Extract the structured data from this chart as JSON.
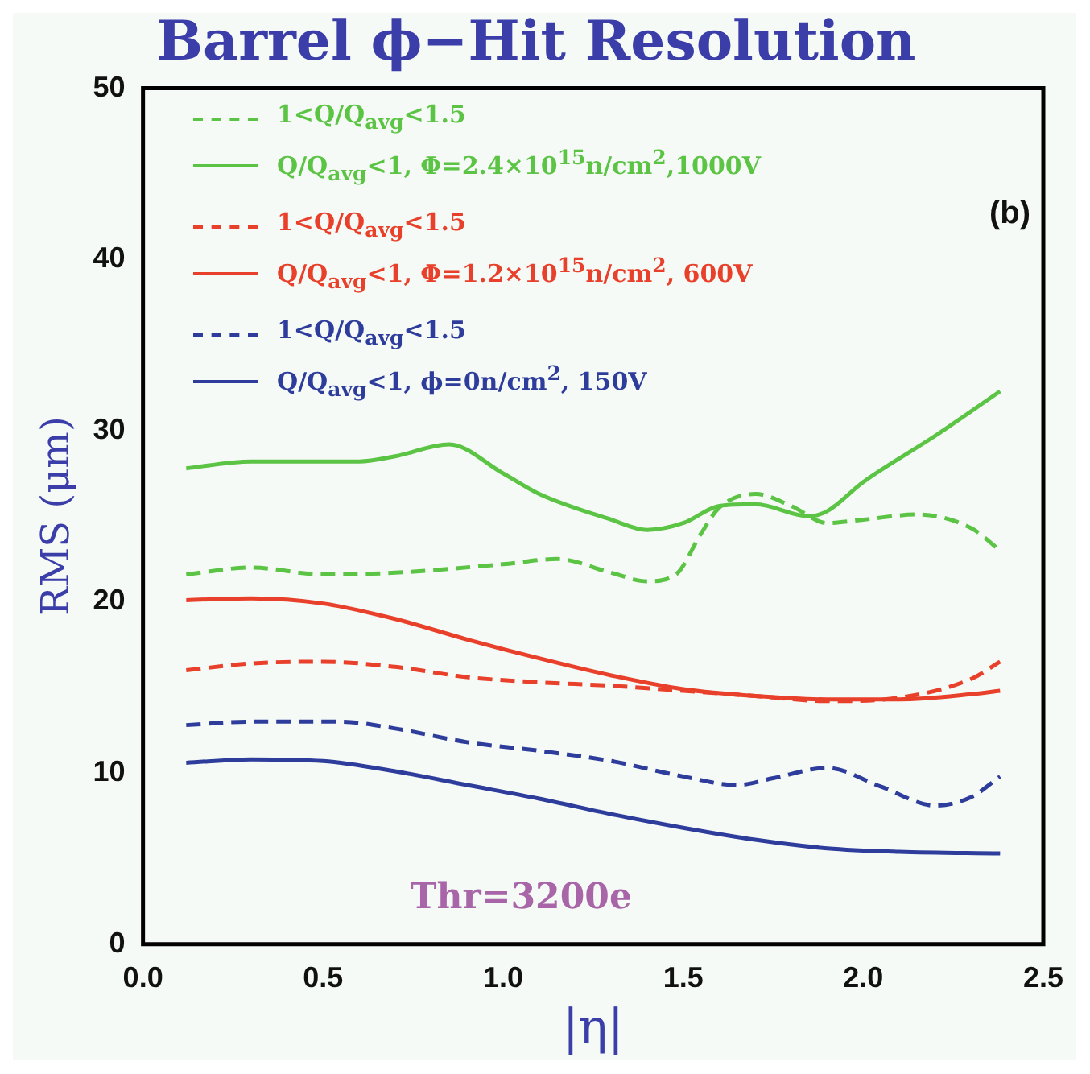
{
  "chart_data": {
    "type": "line",
    "title": "Barrel ϕ−Hit Resolution",
    "xlabel": "|η|",
    "ylabel": "RMS (μm)",
    "annotations": [
      "(b)",
      "Thr=3200e"
    ],
    "xlim": [
      0,
      2.5
    ],
    "xticks": [
      {
        "value": 0,
        "label": "0.0"
      },
      {
        "value": 0.5,
        "label": "0.5"
      },
      {
        "value": 1,
        "label": "1.0"
      },
      {
        "value": 1.5,
        "label": "1.5"
      },
      {
        "value": 2,
        "label": "2.0"
      },
      {
        "value": 2.5,
        "label": "2.5"
      }
    ],
    "ylim": [
      0,
      50
    ],
    "yticks": [
      0,
      10,
      20,
      30,
      40,
      50
    ],
    "grid": false,
    "legend": "top left",
    "marker": "none",
    "series": [
      {
        "name": "1<Q/Q$_{avg}$<1.5",
        "color": "#5cc444",
        "line_style": "dashed",
        "x": [
          0.12,
          0.3,
          0.5,
          0.7,
          1.0,
          1.15,
          1.3,
          1.4,
          1.48,
          1.55,
          1.6,
          1.7,
          1.8,
          1.9,
          2.0,
          2.15,
          2.3,
          2.38
        ],
        "values": [
          21.6,
          22.0,
          21.6,
          21.7,
          22.2,
          22.5,
          21.7,
          21.2,
          21.6,
          24.0,
          25.5,
          26.3,
          25.6,
          24.6,
          24.8,
          25.1,
          24.3,
          23.0
        ]
      },
      {
        "name": "Q/Q$_{avg}$<1, Φ=2.4×10$^{15}$n/cm$^{2}$,1000V",
        "color": "#5cc444",
        "line_style": "solid",
        "x": [
          0.12,
          0.3,
          0.6,
          0.7,
          0.85,
          1.0,
          1.1,
          1.3,
          1.4,
          1.5,
          1.6,
          1.7,
          1.85,
          1.9,
          2.0,
          2.2,
          2.38
        ],
        "values": [
          27.8,
          28.2,
          28.2,
          28.5,
          29.2,
          27.5,
          26.3,
          24.8,
          24.2,
          24.6,
          25.6,
          25.7,
          25.0,
          25.3,
          27.0,
          29.7,
          32.3
        ]
      },
      {
        "name": "1<Q/Q$_{avg}$<1.5",
        "color": "#e8402a",
        "line_style": "dashed",
        "x": [
          0.12,
          0.3,
          0.5,
          0.7,
          0.9,
          1.1,
          1.3,
          1.5,
          1.7,
          1.9,
          2.1,
          2.3,
          2.38
        ],
        "values": [
          16.0,
          16.4,
          16.5,
          16.2,
          15.6,
          15.3,
          15.1,
          14.8,
          14.5,
          14.2,
          14.4,
          15.5,
          16.5
        ]
      },
      {
        "name": "Q/Q$_{avg}$<1, Φ=1.2×10$^{15}$n/cm$^{2}$, 600V",
        "color": "#e8402a",
        "line_style": "solid",
        "x": [
          0.12,
          0.3,
          0.5,
          0.7,
          0.9,
          1.1,
          1.3,
          1.5,
          1.7,
          1.9,
          2.1,
          2.3,
          2.38
        ],
        "values": [
          20.1,
          20.2,
          19.9,
          19.0,
          17.8,
          16.7,
          15.7,
          14.9,
          14.5,
          14.3,
          14.3,
          14.6,
          14.8
        ]
      },
      {
        "name": "1<Q/Q$_{avg}$<1.5",
        "color": "#2e3c9c",
        "line_style": "dashed",
        "x": [
          0.12,
          0.3,
          0.55,
          0.7,
          0.9,
          1.1,
          1.3,
          1.5,
          1.65,
          1.75,
          1.9,
          2.05,
          2.2,
          2.3,
          2.38
        ],
        "values": [
          12.8,
          13.0,
          13.0,
          12.6,
          11.8,
          11.3,
          10.7,
          9.8,
          9.3,
          9.7,
          10.3,
          9.2,
          8.1,
          8.6,
          9.8
        ]
      },
      {
        "name": "Q/Q$_{avg}$<1, ϕ=0n/cm$^{2}$, 150V",
        "color": "#2e3c9c",
        "line_style": "solid",
        "x": [
          0.12,
          0.3,
          0.5,
          0.7,
          0.9,
          1.1,
          1.3,
          1.5,
          1.7,
          1.9,
          2.1,
          2.38
        ],
        "values": [
          10.6,
          10.8,
          10.7,
          10.1,
          9.3,
          8.5,
          7.6,
          6.8,
          6.1,
          5.6,
          5.4,
          5.3
        ]
      }
    ]
  }
}
